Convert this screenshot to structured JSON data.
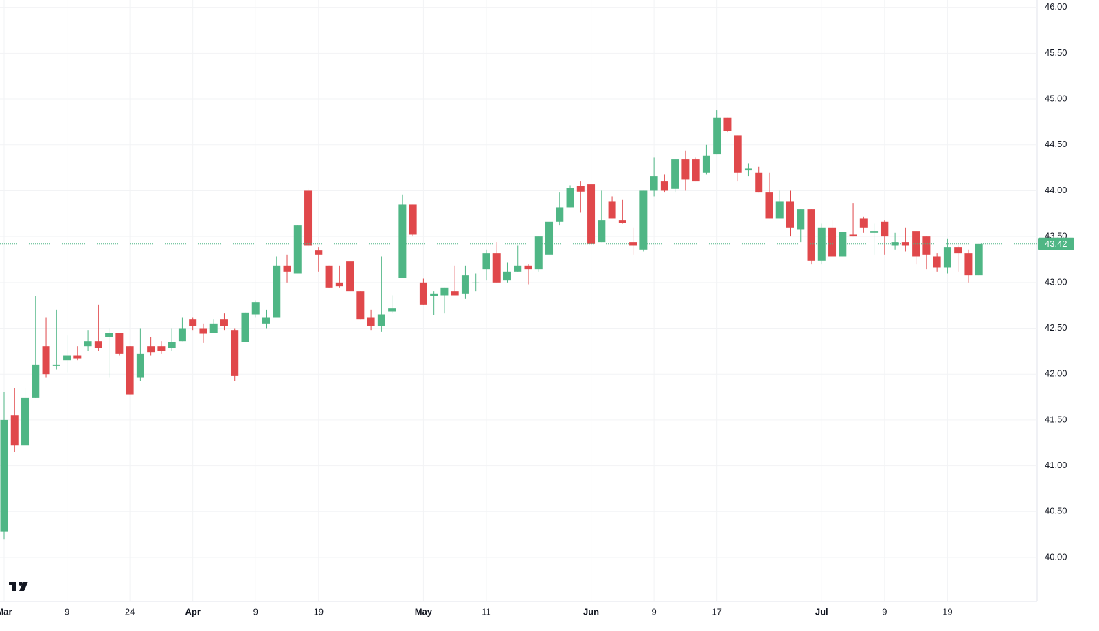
{
  "chart_data": {
    "type": "candlestick",
    "up_color": "#4fb685",
    "down_color": "#e0484b",
    "grid": true,
    "ylim": [
      39.52,
      46.08
    ],
    "yticks": [
      {
        "value": 40,
        "label": "40.00"
      },
      {
        "value": 40.5,
        "label": "40.50"
      },
      {
        "value": 41,
        "label": "41.00"
      },
      {
        "value": 41.5,
        "label": "41.50"
      },
      {
        "value": 42,
        "label": "42.00"
      },
      {
        "value": 42.5,
        "label": "42.50"
      },
      {
        "value": 43,
        "label": "43.00"
      },
      {
        "value": 43.5,
        "label": "43.50"
      },
      {
        "value": 44,
        "label": "44.00"
      },
      {
        "value": 44.5,
        "label": "44.50"
      },
      {
        "value": 45,
        "label": "45.00"
      },
      {
        "value": 45.5,
        "label": "45.50"
      },
      {
        "value": 46,
        "label": "46.00"
      }
    ],
    "last_price": 43.42,
    "categories": [
      "Mar",
      null,
      null,
      null,
      null,
      null,
      "9",
      null,
      null,
      null,
      null,
      null,
      "24",
      null,
      null,
      null,
      null,
      null,
      "Apr",
      null,
      null,
      null,
      null,
      null,
      "9",
      null,
      null,
      null,
      null,
      null,
      "19",
      null,
      null,
      null,
      null,
      null,
      null,
      null,
      null,
      null,
      "May",
      null,
      null,
      null,
      null,
      null,
      "11",
      null,
      null,
      null,
      null,
      null,
      null,
      null,
      null,
      null,
      "Jun",
      null,
      null,
      null,
      null,
      null,
      "9",
      null,
      null,
      null,
      null,
      null,
      "17",
      null,
      null,
      null,
      null,
      null,
      null,
      null,
      null,
      null,
      "Jul",
      null,
      null,
      null,
      null,
      null,
      "9",
      null,
      null,
      null,
      null,
      null,
      "19",
      null,
      null,
      null
    ],
    "open": [
      40.28,
      41.55,
      41.22,
      41.74,
      42.3,
      42.1,
      42.15,
      42.2,
      42.3,
      42.36,
      42.4,
      42.45,
      42.3,
      41.96,
      42.3,
      42.3,
      42.28,
      42.36,
      42.6,
      42.5,
      42.45,
      42.6,
      42.48,
      42.35,
      42.65,
      42.55,
      42.62,
      43.18,
      43.1,
      44.0,
      43.35,
      43.18,
      43.0,
      43.23,
      42.9,
      42.62,
      42.52,
      42.68,
      43.05,
      43.85,
      43.0,
      42.85,
      42.86,
      42.9,
      42.88,
      43.0,
      43.14,
      43.32,
      43.02,
      43.12,
      43.18,
      43.14,
      43.3,
      43.66,
      43.82,
      44.05,
      44.07,
      43.44,
      43.88,
      43.68,
      43.44,
      43.36,
      44.0,
      44.1,
      44.02,
      44.34,
      44.34,
      44.2,
      44.4,
      44.8,
      44.6,
      44.22,
      44.2,
      43.98,
      43.7,
      43.88,
      43.58,
      43.8,
      43.24,
      43.6,
      43.28,
      43.52,
      43.7,
      43.54,
      43.66,
      43.4,
      43.44,
      43.56,
      43.5,
      43.28,
      43.16,
      43.38,
      43.32,
      43.08
    ],
    "high": [
      41.8,
      41.85,
      41.85,
      42.85,
      42.62,
      42.7,
      42.42,
      42.3,
      42.48,
      42.76,
      42.5,
      42.45,
      42.3,
      42.5,
      42.4,
      42.36,
      42.5,
      42.62,
      42.62,
      42.55,
      42.6,
      42.66,
      42.5,
      42.67,
      42.8,
      42.7,
      43.28,
      43.3,
      43.62,
      44.02,
      43.38,
      43.18,
      43.18,
      43.23,
      42.9,
      42.7,
      43.28,
      42.86,
      43.96,
      43.85,
      43.04,
      42.9,
      42.94,
      43.18,
      43.18,
      43.1,
      43.36,
      43.44,
      43.22,
      43.4,
      43.2,
      43.5,
      43.66,
      43.98,
      44.06,
      44.1,
      44.07,
      44.0,
      43.94,
      43.9,
      43.6,
      44.0,
      44.36,
      44.18,
      44.34,
      44.44,
      44.36,
      44.5,
      44.88,
      44.8,
      44.6,
      44.3,
      44.26,
      44.2,
      44.0,
      44.0,
      43.8,
      43.8,
      43.64,
      43.68,
      43.55,
      43.86,
      43.72,
      43.64,
      43.68,
      43.54,
      43.6,
      43.56,
      43.5,
      43.32,
      43.48,
      43.4,
      43.36,
      43.42
    ],
    "low": [
      40.2,
      41.15,
      41.22,
      41.74,
      41.96,
      42.05,
      42.02,
      42.15,
      42.25,
      42.25,
      41.96,
      42.2,
      41.78,
      41.92,
      42.2,
      42.22,
      42.25,
      42.36,
      42.48,
      42.34,
      42.45,
      42.48,
      41.92,
      42.35,
      42.62,
      42.5,
      42.62,
      43.0,
      43.1,
      43.38,
      43.12,
      42.94,
      42.94,
      42.9,
      42.6,
      42.48,
      42.46,
      42.66,
      43.05,
      43.5,
      42.76,
      42.64,
      42.66,
      42.86,
      42.82,
      42.9,
      43.02,
      43.0,
      43.0,
      43.12,
      42.98,
      43.12,
      43.28,
      43.62,
      43.82,
      43.76,
      43.42,
      43.44,
      43.7,
      43.64,
      43.3,
      43.34,
      43.94,
      43.98,
      43.98,
      44.0,
      44.1,
      44.18,
      44.4,
      44.64,
      44.1,
      44.16,
      43.98,
      43.7,
      43.7,
      43.5,
      43.44,
      43.2,
      43.2,
      43.28,
      43.28,
      43.5,
      43.54,
      43.3,
      43.3,
      43.36,
      43.34,
      43.2,
      43.14,
      43.12,
      43.1,
      43.12,
      43.0,
      43.08
    ],
    "close": [
      41.5,
      41.22,
      41.74,
      42.1,
      42.0,
      42.1,
      42.2,
      42.17,
      42.36,
      42.28,
      42.45,
      42.22,
      41.78,
      42.22,
      42.24,
      42.25,
      42.35,
      42.5,
      42.52,
      42.44,
      42.55,
      42.52,
      41.98,
      42.67,
      42.78,
      42.62,
      43.18,
      43.12,
      43.62,
      43.4,
      43.3,
      42.94,
      42.96,
      42.9,
      42.6,
      42.52,
      42.65,
      42.72,
      43.85,
      43.52,
      42.76,
      42.88,
      42.94,
      42.86,
      43.08,
      43.0,
      43.32,
      43.0,
      43.12,
      43.18,
      43.14,
      43.5,
      43.66,
      43.82,
      44.03,
      43.99,
      43.42,
      43.68,
      43.7,
      43.65,
      43.4,
      44.0,
      44.16,
      44.0,
      44.34,
      44.12,
      44.1,
      44.38,
      44.8,
      44.65,
      44.2,
      44.24,
      43.98,
      43.7,
      43.88,
      43.6,
      43.8,
      43.24,
      43.6,
      43.28,
      43.55,
      43.5,
      43.6,
      43.56,
      43.5,
      43.44,
      43.4,
      43.28,
      43.3,
      43.16,
      43.38,
      43.32,
      43.08,
      43.42
    ]
  }
}
